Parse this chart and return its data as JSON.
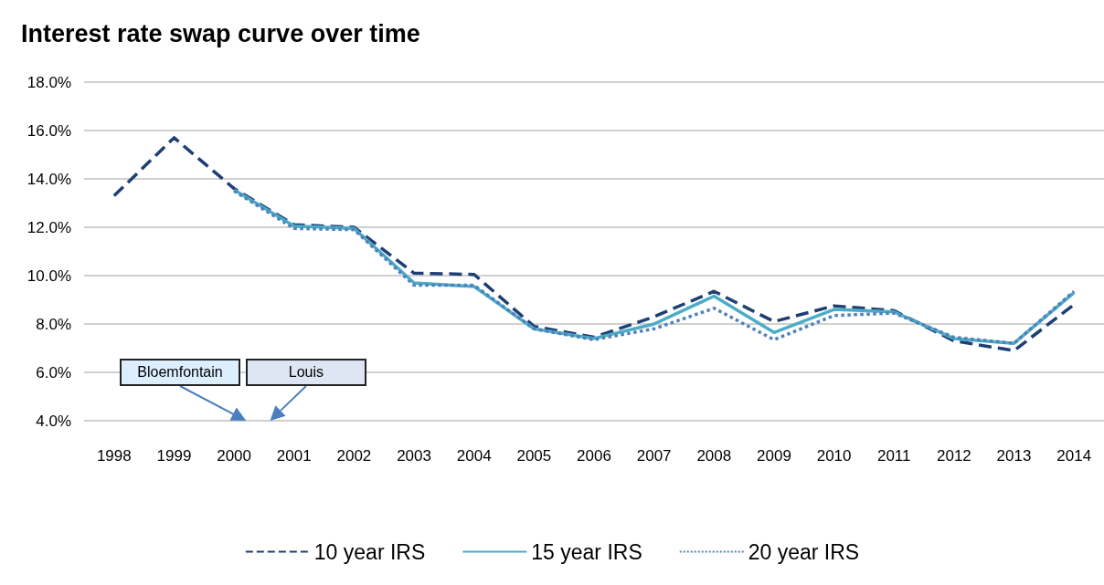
{
  "chart_data": {
    "type": "line",
    "title": "Interest rate swap curve over time",
    "categories": [
      "1998",
      "1999",
      "2000",
      "2001",
      "2002",
      "2003",
      "2004",
      "2005",
      "2006",
      "2007",
      "2008",
      "2009",
      "2010",
      "2011",
      "2012",
      "2013",
      "2014"
    ],
    "series": [
      {
        "name": "10 year IRS",
        "color": "#1f3f74",
        "line_style": "dashed",
        "values": [
          13.3,
          15.7,
          13.6,
          12.1,
          12.0,
          10.1,
          10.05,
          7.9,
          7.45,
          8.3,
          9.35,
          8.1,
          8.75,
          8.55,
          7.3,
          6.9,
          8.8
        ]
      },
      {
        "name": "15 year IRS",
        "color": "#4bacc6",
        "line_style": "solid",
        "values": [
          null,
          null,
          13.55,
          12.05,
          11.95,
          9.7,
          9.55,
          7.8,
          7.4,
          8.0,
          9.15,
          7.65,
          8.6,
          8.5,
          7.4,
          7.2,
          9.3
        ]
      },
      {
        "name": "20 year IRS",
        "color": "#4f81bd",
        "line_style": "dotted",
        "values": [
          null,
          null,
          13.5,
          11.95,
          11.9,
          9.6,
          9.6,
          7.8,
          7.35,
          7.8,
          8.65,
          7.35,
          8.35,
          8.45,
          7.45,
          7.2,
          9.35
        ]
      }
    ],
    "ylim": [
      4,
      18
    ],
    "yticks": [
      {
        "value": 4,
        "label": "4.0%"
      },
      {
        "value": 6,
        "label": "6.0%"
      },
      {
        "value": 8,
        "label": "8.0%"
      },
      {
        "value": 10,
        "label": "10.0%"
      },
      {
        "value": 12,
        "label": "12.0%"
      },
      {
        "value": 14,
        "label": "14.0%"
      },
      {
        "value": 16,
        "label": "16.0%"
      },
      {
        "value": 18,
        "label": "18.0%"
      }
    ],
    "grid": "y",
    "legend": "bottom",
    "marker": "none",
    "annotations": [
      "Bloemfontain",
      "Louis"
    ]
  }
}
